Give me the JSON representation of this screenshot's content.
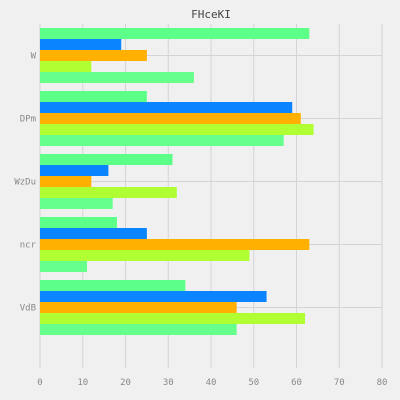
{
  "chart_data": {
    "type": "bar",
    "orientation": "horizontal",
    "title": "FHceKI",
    "xlabel": "",
    "ylabel": "",
    "categories": [
      "W",
      "DPm",
      "WzDu",
      "ncr",
      "VdB"
    ],
    "series": [
      {
        "color": "#5cff87",
        "values": [
          63,
          25,
          31,
          18,
          34
        ]
      },
      {
        "color": "#0a84ff",
        "values": [
          19,
          59,
          16,
          25,
          53
        ]
      },
      {
        "color": "#ffb000",
        "values": [
          25,
          61,
          12,
          63,
          46
        ]
      },
      {
        "color": "#b0ff33",
        "values": [
          12,
          64,
          32,
          49,
          62
        ]
      },
      {
        "color": "#66ff8c",
        "values": [
          36,
          57,
          17,
          11,
          46
        ]
      }
    ],
    "xlim": [
      0,
      80
    ],
    "xticks": [
      0,
      10,
      20,
      30,
      40,
      50,
      60,
      70,
      80
    ],
    "grid": true,
    "legend": "none"
  }
}
